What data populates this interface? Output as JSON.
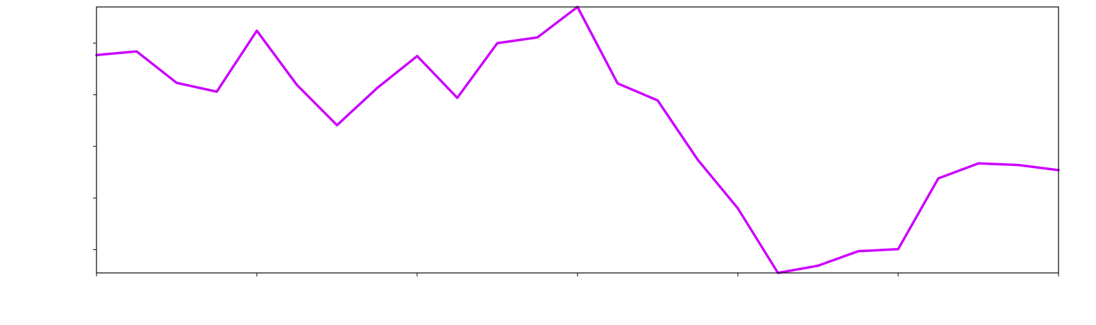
{
  "chart_data": {
    "type": "line",
    "title": "",
    "xlabel": "",
    "ylabel": "",
    "xlim": [
      0,
      24
    ],
    "ylim": [
      -0.05,
      5.1
    ],
    "x_ticks": [
      0,
      4,
      8,
      12,
      16,
      20,
      24
    ],
    "y_ticks": [
      0.4,
      1.4,
      2.4,
      3.4,
      4.4,
      5.4
    ],
    "grid": false,
    "legend": "none",
    "series": [
      {
        "color": "#cc00ff",
        "x": [
          0,
          1,
          2,
          3,
          4,
          5,
          6,
          7,
          8,
          9,
          10,
          11,
          12,
          13,
          14,
          15,
          16,
          17,
          18,
          19,
          20,
          21,
          22,
          23,
          24
        ],
        "values": [
          4.17,
          4.24,
          3.63,
          3.46,
          4.64,
          3.59,
          2.81,
          3.53,
          4.15,
          3.34,
          4.4,
          4.51,
          5.1,
          3.62,
          3.29,
          2.14,
          1.2,
          -0.05,
          0.09,
          0.37,
          0.41,
          1.78,
          2.07,
          2.04,
          1.94
        ]
      }
    ]
  }
}
